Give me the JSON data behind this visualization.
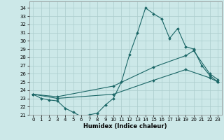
{
  "title": "",
  "xlabel": "Humidex (Indice chaleur)",
  "bg_color": "#cce8e8",
  "grid_color": "#aacccc",
  "line_color": "#1a6666",
  "xlim": [
    -0.5,
    23.5
  ],
  "ylim": [
    21,
    34.8
  ],
  "yticks": [
    21,
    22,
    23,
    24,
    25,
    26,
    27,
    28,
    29,
    30,
    31,
    32,
    33,
    34
  ],
  "xticks": [
    0,
    1,
    2,
    3,
    4,
    5,
    6,
    7,
    8,
    9,
    10,
    11,
    12,
    13,
    14,
    15,
    16,
    17,
    18,
    19,
    20,
    21,
    22,
    23
  ],
  "line1_x": [
    0,
    1,
    2,
    3,
    4,
    5,
    6,
    7,
    8,
    9,
    10,
    11,
    12,
    13,
    14,
    15,
    16,
    17,
    18,
    19,
    20,
    21,
    22,
    23
  ],
  "line1_y": [
    23.5,
    23.0,
    22.8,
    22.7,
    21.8,
    21.3,
    20.8,
    21.0,
    21.2,
    22.2,
    23.0,
    25.0,
    28.3,
    31.0,
    34.0,
    33.3,
    32.7,
    30.3,
    31.5,
    29.3,
    29.0,
    27.0,
    25.8,
    25.0
  ],
  "line2_x": [
    0,
    3,
    10,
    15,
    19,
    20,
    22,
    23
  ],
  "line2_y": [
    23.5,
    23.2,
    24.5,
    26.8,
    28.2,
    28.8,
    26.0,
    25.3
  ],
  "line3_x": [
    0,
    3,
    10,
    15,
    19,
    22,
    23
  ],
  "line3_y": [
    23.5,
    23.0,
    23.5,
    25.2,
    26.5,
    25.5,
    25.0
  ],
  "lw": 0.8,
  "ms": 2.0,
  "tick_fontsize": 5.0,
  "xlabel_fontsize": 6.0
}
